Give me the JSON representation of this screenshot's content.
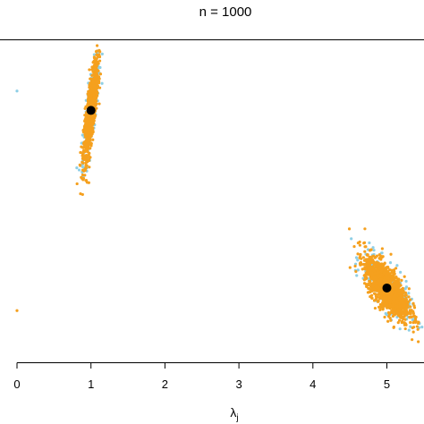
{
  "chart_data": {
    "type": "scatter",
    "title": "n = 1000",
    "xlabel": "λ",
    "xlabel_subscript": "j",
    "ylabel": "",
    "xlim": [
      -0.2,
      5.5
    ],
    "ylim": [
      0,
      1
    ],
    "x_ticks": [
      0,
      1,
      2,
      3,
      4,
      5
    ],
    "x_tick_labels": [
      "0",
      "1",
      "2",
      "3",
      "4",
      "5"
    ],
    "grid": false,
    "legend": "none",
    "colors": {
      "series_a": "#f5a01e",
      "series_b": "#8ecfe6",
      "true_value": "#000000"
    },
    "clusters": [
      {
        "series": "series_b",
        "cx": 1.0,
        "cy": 0.78,
        "sx": 0.055,
        "sy": 0.085,
        "rho": 0.8,
        "n": 260
      },
      {
        "series": "series_a",
        "cx": 1.0,
        "cy": 0.78,
        "sx": 0.05,
        "sy": 0.078,
        "rho": 0.8,
        "n": 900
      },
      {
        "series": "series_b",
        "cx": 5.0,
        "cy": 0.23,
        "sx": 0.16,
        "sy": 0.05,
        "rho": -0.72,
        "n": 320
      },
      {
        "series": "series_a",
        "cx": 5.0,
        "cy": 0.23,
        "sx": 0.15,
        "sy": 0.047,
        "rho": -0.72,
        "n": 1400
      }
    ],
    "outliers": [
      {
        "series": "series_b",
        "x": 0.0,
        "y": 0.84
      },
      {
        "series": "series_a",
        "x": 0.0,
        "y": 0.16
      }
    ],
    "true_values": [
      {
        "x": 1.0,
        "y": 0.78
      },
      {
        "x": 5.0,
        "y": 0.23
      }
    ]
  }
}
